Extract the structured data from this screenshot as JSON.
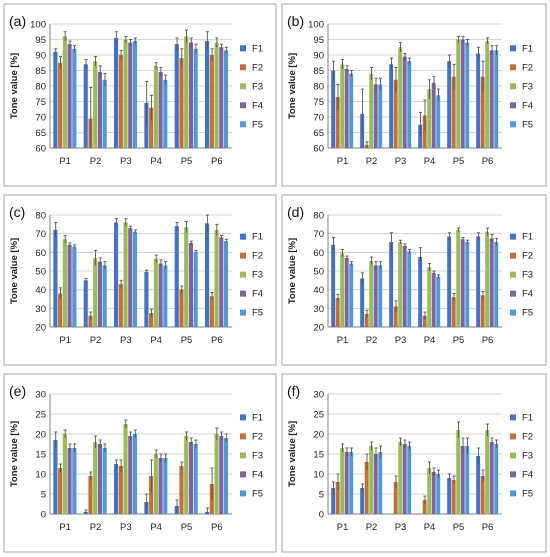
{
  "figure": {
    "series_names": [
      "F1",
      "F2",
      "F3",
      "F4",
      "F5"
    ],
    "series_colors": [
      "#4472c4",
      "#c0703a",
      "#9bbb59",
      "#8064a2",
      "#4f9ad6"
    ]
  },
  "chart_data": [
    {
      "type": "bar",
      "panel_label": "(a)",
      "ylabel": "Tone value [%]",
      "ylim": [
        60,
        100
      ],
      "yticks": [
        60,
        65,
        70,
        75,
        80,
        85,
        90,
        95,
        100
      ],
      "grid": true,
      "legend": "right",
      "categories": [
        "P1",
        "P2",
        "P3",
        "P4",
        "P5",
        "P6"
      ],
      "series": [
        {
          "name": "F1",
          "values": [
            91,
            87,
            95.5,
            74.5,
            93.5,
            94.5
          ],
          "errors": [
            1,
            1.5,
            2,
            7,
            2,
            3
          ]
        },
        {
          "name": "F2",
          "values": [
            87.5,
            69.5,
            90,
            73,
            89,
            90
          ],
          "errors": [
            2,
            10,
            1.5,
            4,
            3,
            2
          ]
        },
        {
          "name": "F3",
          "values": [
            96,
            88,
            95,
            86.5,
            96,
            94
          ],
          "errors": [
            1.5,
            1.5,
            1,
            1,
            2,
            1.5
          ]
        },
        {
          "name": "F4",
          "values": [
            93.5,
            84.5,
            94,
            84.5,
            94,
            92.5
          ],
          "errors": [
            1,
            2,
            1,
            1.5,
            1.5,
            1
          ]
        },
        {
          "name": "F5",
          "values": [
            92,
            82,
            94.5,
            82,
            92,
            91.5
          ],
          "errors": [
            1,
            2,
            1,
            1.5,
            1.5,
            1
          ]
        }
      ]
    },
    {
      "type": "bar",
      "panel_label": "(b)",
      "ylabel": "Tone value [%]",
      "ylim": [
        60,
        100
      ],
      "yticks": [
        60,
        65,
        70,
        75,
        80,
        85,
        90,
        95,
        100
      ],
      "grid": true,
      "legend": "right",
      "categories": [
        "P1",
        "P2",
        "P3",
        "P4",
        "P5",
        "P6"
      ],
      "series": [
        {
          "name": "F1",
          "values": [
            85,
            71,
            87,
            67.5,
            88,
            90.5
          ],
          "errors": [
            3,
            8,
            2,
            4,
            2,
            2
          ]
        },
        {
          "name": "F2",
          "values": [
            76.5,
            61,
            82,
            70.5,
            83,
            83
          ],
          "errors": [
            4,
            1,
            4,
            5,
            4,
            5
          ]
        },
        {
          "name": "F3",
          "values": [
            87,
            84,
            92.5,
            79,
            95,
            94.5
          ],
          "errors": [
            1.5,
            2,
            1.5,
            3,
            1,
            1
          ]
        },
        {
          "name": "F4",
          "values": [
            85.5,
            80.5,
            89.5,
            81,
            95,
            91.5
          ],
          "errors": [
            1,
            2,
            1,
            2,
            1,
            1.5
          ]
        },
        {
          "name": "F5",
          "values": [
            84,
            80.5,
            88,
            77,
            94,
            91.5
          ],
          "errors": [
            1,
            2,
            1,
            2,
            1,
            1.5
          ]
        }
      ]
    },
    {
      "type": "bar",
      "panel_label": "(c)",
      "ylabel": "Tone value [%]",
      "ylim": [
        20,
        80
      ],
      "yticks": [
        20,
        30,
        40,
        50,
        60,
        70,
        80
      ],
      "grid": true,
      "legend": "right",
      "categories": [
        "P1",
        "P2",
        "P3",
        "P4",
        "P5",
        "P6"
      ],
      "series": [
        {
          "name": "F1",
          "values": [
            72,
            45,
            76,
            49.5,
            74,
            75.5
          ],
          "errors": [
            4,
            1,
            2,
            1,
            2,
            5
          ]
        },
        {
          "name": "F2",
          "values": [
            38,
            26,
            43,
            27.5,
            40,
            36.5
          ],
          "errors": [
            3,
            2,
            2,
            2,
            2,
            2
          ]
        },
        {
          "name": "F3",
          "values": [
            67,
            57,
            76,
            56.5,
            73.5,
            72
          ],
          "errors": [
            2,
            4,
            2,
            2,
            3,
            3
          ]
        },
        {
          "name": "F4",
          "values": [
            64,
            55,
            73,
            54,
            65,
            68
          ],
          "errors": [
            1,
            2,
            1,
            2,
            1,
            1
          ]
        },
        {
          "name": "F5",
          "values": [
            63,
            53,
            71,
            53,
            60,
            66
          ],
          "errors": [
            1,
            2,
            1,
            2,
            1,
            1
          ]
        }
      ]
    },
    {
      "type": "bar",
      "panel_label": "(d)",
      "ylabel": "Tone value [%]",
      "ylim": [
        20,
        80
      ],
      "yticks": [
        20,
        30,
        40,
        50,
        60,
        70,
        80
      ],
      "grid": true,
      "legend": "right",
      "categories": [
        "P1",
        "P2",
        "P3",
        "P4",
        "P5",
        "P6"
      ],
      "series": [
        {
          "name": "F1",
          "values": [
            64,
            46,
            65.5,
            57.5,
            68.5,
            68.5
          ],
          "errors": [
            4,
            3,
            5,
            5,
            2,
            2
          ]
        },
        {
          "name": "F2",
          "values": [
            35.5,
            27,
            31,
            26,
            36,
            37
          ],
          "errors": [
            2,
            2,
            3,
            2,
            2,
            2
          ]
        },
        {
          "name": "F3",
          "values": [
            59.5,
            55.5,
            65.5,
            52,
            72,
            71
          ],
          "errors": [
            2,
            2,
            1,
            2,
            1,
            2
          ]
        },
        {
          "name": "F4",
          "values": [
            57,
            53,
            63.5,
            49,
            67,
            67.5
          ],
          "errors": [
            1,
            2,
            1,
            1,
            1,
            2
          ]
        },
        {
          "name": "F5",
          "values": [
            54,
            53,
            60.5,
            47,
            65.5,
            65.5
          ],
          "errors": [
            1,
            2,
            1,
            1,
            1,
            2
          ]
        }
      ]
    },
    {
      "type": "bar",
      "panel_label": "(e)",
      "ylabel": "Tone value [%]",
      "ylim": [
        0,
        30
      ],
      "yticks": [
        0,
        5,
        10,
        15,
        20,
        25,
        30
      ],
      "grid": true,
      "legend": "right",
      "categories": [
        "P1",
        "P2",
        "P3",
        "P4",
        "P5",
        "P6"
      ],
      "series": [
        {
          "name": "F1",
          "values": [
            18.5,
            0.5,
            12.5,
            3,
            2,
            0.5
          ],
          "errors": [
            2,
            0.5,
            1,
            2,
            1.5,
            1
          ]
        },
        {
          "name": "F2",
          "values": [
            11.5,
            9.5,
            12,
            9.5,
            12,
            7.5
          ],
          "errors": [
            1,
            1,
            1.5,
            4,
            1,
            4
          ]
        },
        {
          "name": "F3",
          "values": [
            20,
            18,
            22.5,
            15,
            19.5,
            20
          ],
          "errors": [
            1,
            1.5,
            1,
            1,
            1,
            1.5
          ]
        },
        {
          "name": "F4",
          "values": [
            16.5,
            17.5,
            19.5,
            14,
            18,
            19.5
          ],
          "errors": [
            1,
            1,
            1,
            1,
            1,
            1
          ]
        },
        {
          "name": "F5",
          "values": [
            16.5,
            16.5,
            20,
            14,
            17.5,
            19
          ],
          "errors": [
            1,
            1,
            1,
            1,
            1,
            1
          ]
        }
      ]
    },
    {
      "type": "bar",
      "panel_label": "(f)",
      "ylabel": "Tone value [%]",
      "ylim": [
        0,
        30
      ],
      "yticks": [
        0,
        5,
        10,
        15,
        20,
        25,
        30
      ],
      "grid": true,
      "legend": "right",
      "categories": [
        "P1",
        "P2",
        "P3",
        "P4",
        "P5",
        "P6"
      ],
      "series": [
        {
          "name": "F1",
          "values": [
            6.5,
            6.5,
            0,
            0,
            9,
            14.5
          ],
          "errors": [
            1.5,
            1,
            0,
            0,
            1,
            2
          ]
        },
        {
          "name": "F2",
          "values": [
            8,
            13,
            8,
            3.5,
            8.5,
            9.5
          ],
          "errors": [
            2,
            2,
            1.5,
            1,
            1,
            1.5
          ]
        },
        {
          "name": "F3",
          "values": [
            16.5,
            17,
            18,
            11.5,
            21,
            21
          ],
          "errors": [
            1,
            1,
            1,
            1.5,
            2,
            1.5
          ]
        },
        {
          "name": "F4",
          "values": [
            15.5,
            15,
            17.5,
            10.5,
            17,
            18
          ],
          "errors": [
            1,
            1.5,
            1,
            1,
            2,
            1
          ]
        },
        {
          "name": "F5",
          "values": [
            15.5,
            15.5,
            17,
            10,
            17,
            17.5
          ],
          "errors": [
            1,
            1.5,
            1,
            1,
            2,
            1
          ]
        }
      ]
    }
  ]
}
